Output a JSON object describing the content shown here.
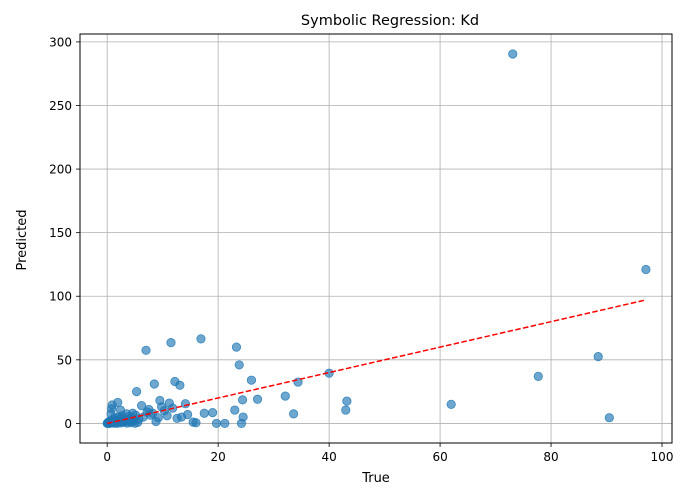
{
  "chart_data": {
    "type": "scatter",
    "title": "Symbolic Regression: Kd",
    "xlabel": "True",
    "ylabel": "Predicted",
    "xlim": [
      -4.9,
      101.8
    ],
    "ylim": [
      -15.4,
      306.2
    ],
    "xticks": [
      0,
      20,
      40,
      60,
      80,
      100
    ],
    "yticks": [
      0,
      50,
      100,
      150,
      200,
      250,
      300
    ],
    "grid": true,
    "colors": {
      "points": "#1f77b4",
      "fit_line": "#ff0000"
    },
    "fit_line": {
      "style": "dashed",
      "x": [
        0,
        97
      ],
      "y": [
        0,
        97
      ]
    },
    "points": [
      [
        0.0,
        0.0
      ],
      [
        0.1,
        0.5
      ],
      [
        0.2,
        0.1
      ],
      [
        0.3,
        1.2
      ],
      [
        0.4,
        0.0
      ],
      [
        0.5,
        2.0
      ],
      [
        0.6,
        0.3
      ],
      [
        0.7,
        7.5
      ],
      [
        0.8,
        11.5
      ],
      [
        0.9,
        14.5
      ],
      [
        1.0,
        0.8
      ],
      [
        1.1,
        3.0
      ],
      [
        1.2,
        0.2
      ],
      [
        1.3,
        4.5
      ],
      [
        1.5,
        0.6
      ],
      [
        1.6,
        2.5
      ],
      [
        1.8,
        0.0
      ],
      [
        1.9,
        16.5
      ],
      [
        2.0,
        5.0
      ],
      [
        2.1,
        1.0
      ],
      [
        2.3,
        3.5
      ],
      [
        2.4,
        10.5
      ],
      [
        2.5,
        0.4
      ],
      [
        2.7,
        6.0
      ],
      [
        2.8,
        2.2
      ],
      [
        3.0,
        0.9
      ],
      [
        3.1,
        4.0
      ],
      [
        3.3,
        1.5
      ],
      [
        3.5,
        7.5
      ],
      [
        3.6,
        0.3
      ],
      [
        3.8,
        3.0
      ],
      [
        4.0,
        5.5
      ],
      [
        4.1,
        1.8
      ],
      [
        4.3,
        0.6
      ],
      [
        4.5,
        4.5
      ],
      [
        4.6,
        8.0
      ],
      [
        4.8,
        2.5
      ],
      [
        5.0,
        0.2
      ],
      [
        5.1,
        6.5
      ],
      [
        5.3,
        25.0
      ],
      [
        5.5,
        0.8
      ],
      [
        5.7,
        3.5
      ],
      [
        6.2,
        14.0
      ],
      [
        6.5,
        5.0
      ],
      [
        7.0,
        57.5
      ],
      [
        7.2,
        9.0
      ],
      [
        7.5,
        11.0
      ],
      [
        7.8,
        6.5
      ],
      [
        8.2,
        8.0
      ],
      [
        8.5,
        31.0
      ],
      [
        8.8,
        1.5
      ],
      [
        9.2,
        4.5
      ],
      [
        9.5,
        18.0
      ],
      [
        9.8,
        13.0
      ],
      [
        10.3,
        10.0
      ],
      [
        10.8,
        6.0
      ],
      [
        11.2,
        16.0
      ],
      [
        11.5,
        63.5
      ],
      [
        11.8,
        12.0
      ],
      [
        12.2,
        33.0
      ],
      [
        12.6,
        4.0
      ],
      [
        13.1,
        30.0
      ],
      [
        13.4,
        5.0
      ],
      [
        14.1,
        15.5
      ],
      [
        14.5,
        7.0
      ],
      [
        15.5,
        1.0
      ],
      [
        16.0,
        0.5
      ],
      [
        16.9,
        66.5
      ],
      [
        17.5,
        8.0
      ],
      [
        19.0,
        8.5
      ],
      [
        19.7,
        0.0
      ],
      [
        21.2,
        0.0
      ],
      [
        23.0,
        10.5
      ],
      [
        23.3,
        60.0
      ],
      [
        23.8,
        46.0
      ],
      [
        24.2,
        0.0
      ],
      [
        24.5,
        5.0
      ],
      [
        24.4,
        18.5
      ],
      [
        26.0,
        34.0
      ],
      [
        27.1,
        19.0
      ],
      [
        32.1,
        21.5
      ],
      [
        33.6,
        7.5
      ],
      [
        34.4,
        32.5
      ],
      [
        40.0,
        39.5
      ],
      [
        43.0,
        10.5
      ],
      [
        43.2,
        17.5
      ],
      [
        62.0,
        15.0
      ],
      [
        73.1,
        290.5
      ],
      [
        77.7,
        37.0
      ],
      [
        88.5,
        52.5
      ],
      [
        90.5,
        4.5
      ],
      [
        97.1,
        121.0
      ]
    ]
  }
}
